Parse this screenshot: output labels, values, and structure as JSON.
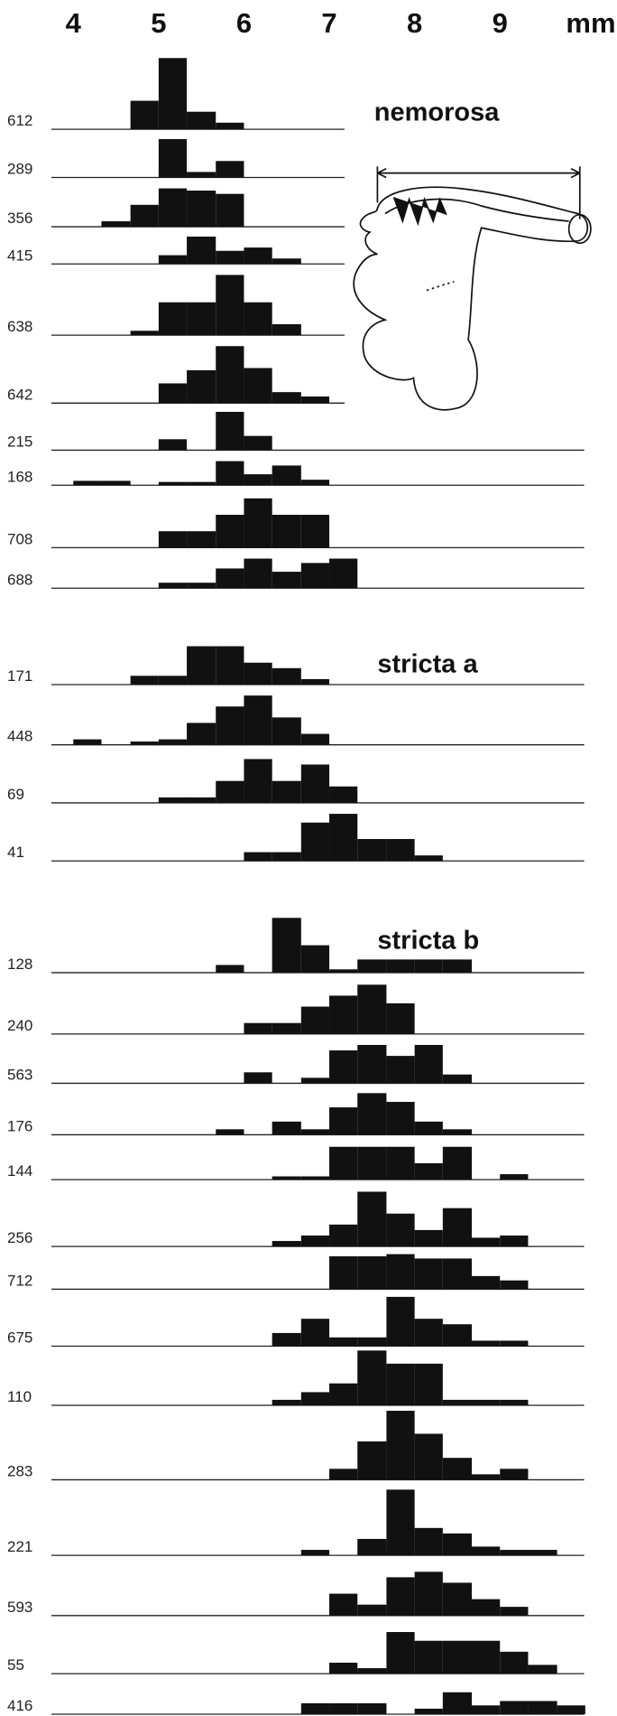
{
  "chart_data": {
    "type": "histogram",
    "xlabel": "mm",
    "xlim": [
      4,
      10
    ],
    "xticks": [
      4,
      5,
      6,
      7,
      8,
      9
    ],
    "color": "#111111",
    "bins": [
      4,
      4.33,
      4.67,
      5,
      5.33,
      5.67,
      6,
      6.33,
      6.67,
      7,
      7.33,
      7.67,
      8,
      8.33,
      8.67,
      9,
      9.33,
      9.67,
      10
    ],
    "panels": [
      {
        "title": "nemorosa",
        "series": [
          {
            "name": "612",
            "values": [
              0,
              0,
              26,
              65,
              16,
              6,
              0,
              0,
              0,
              0,
              0,
              0,
              0,
              0,
              0,
              0,
              0,
              0
            ]
          },
          {
            "name": "289",
            "values": [
              0,
              0,
              0,
              35,
              5,
              15,
              0,
              0,
              0,
              0,
              0,
              0,
              0,
              0,
              0,
              0,
              0,
              0
            ]
          },
          {
            "name": "356",
            "values": [
              0,
              5,
              20,
              35,
              33,
              30,
              0,
              0,
              0,
              0,
              0,
              0,
              0,
              0,
              0,
              0,
              0,
              0
            ]
          },
          {
            "name": "415",
            "values": [
              0,
              0,
              0,
              8,
              25,
              12,
              15,
              5,
              0,
              0,
              0,
              0,
              0,
              0,
              0,
              0,
              0,
              0
            ]
          },
          {
            "name": "638",
            "values": [
              0,
              0,
              4,
              30,
              30,
              55,
              30,
              10,
              0,
              0,
              0,
              0,
              0,
              0,
              0,
              0,
              0,
              0
            ]
          },
          {
            "name": "642",
            "values": [
              0,
              0,
              0,
              18,
              30,
              52,
              32,
              10,
              6,
              0,
              0,
              0,
              0,
              0,
              0,
              0,
              0,
              0
            ]
          },
          {
            "name": "215",
            "values": [
              0,
              0,
              0,
              10,
              0,
              35,
              13,
              0,
              0,
              0,
              0,
              0,
              0,
              0,
              0,
              0,
              0,
              0
            ]
          },
          {
            "name": "168",
            "values": [
              4,
              4,
              0,
              3,
              3,
              22,
              10,
              18,
              5,
              0,
              0,
              0,
              0,
              0,
              0,
              0,
              0,
              0
            ]
          },
          {
            "name": "708",
            "values": [
              0,
              0,
              0,
              15,
              15,
              30,
              45,
              30,
              30,
              0,
              0,
              0,
              0,
              0,
              0,
              0,
              0,
              0
            ]
          },
          {
            "name": "688",
            "values": [
              0,
              0,
              0,
              5,
              5,
              18,
              27,
              15,
              23,
              27,
              0,
              0,
              0,
              0,
              0,
              0,
              0,
              0
            ]
          }
        ]
      },
      {
        "title": "stricta a",
        "series": [
          {
            "name": "171",
            "values": [
              0,
              0,
              8,
              8,
              35,
              35,
              20,
              15,
              5,
              0,
              0,
              0,
              0,
              0,
              0,
              0,
              0,
              0
            ]
          },
          {
            "name": "448",
            "values": [
              5,
              0,
              3,
              5,
              20,
              35,
              45,
              25,
              10,
              0,
              0,
              0,
              0,
              0,
              0,
              0,
              0,
              0
            ]
          },
          {
            "name": "69",
            "values": [
              0,
              0,
              0,
              5,
              5,
              20,
              40,
              20,
              35,
              15,
              0,
              0,
              0,
              0,
              0,
              0,
              0,
              0
            ]
          },
          {
            "name": "41",
            "values": [
              0,
              0,
              0,
              0,
              0,
              0,
              8,
              8,
              35,
              43,
              20,
              20,
              5,
              0,
              0,
              0,
              0,
              0
            ]
          }
        ]
      },
      {
        "title": "stricta b",
        "series": [
          {
            "name": "128",
            "values": [
              0,
              0,
              0,
              0,
              0,
              7,
              0,
              50,
              25,
              3,
              12,
              12,
              12,
              12,
              0,
              0,
              0,
              0
            ]
          },
          {
            "name": "240",
            "values": [
              0,
              0,
              0,
              0,
              0,
              0,
              10,
              10,
              25,
              35,
              45,
              28,
              0,
              0,
              0,
              0,
              0,
              0
            ]
          },
          {
            "name": "563",
            "values": [
              0,
              0,
              0,
              0,
              0,
              0,
              10,
              0,
              5,
              30,
              35,
              25,
              35,
              8,
              0,
              0,
              0,
              0
            ]
          },
          {
            "name": "176",
            "values": [
              0,
              0,
              0,
              0,
              0,
              5,
              0,
              12,
              5,
              25,
              38,
              30,
              12,
              5,
              0,
              0,
              0,
              0
            ]
          },
          {
            "name": "144",
            "values": [
              0,
              0,
              0,
              0,
              0,
              0,
              0,
              3,
              3,
              30,
              30,
              30,
              15,
              30,
              0,
              5,
              0,
              0
            ]
          },
          {
            "name": "256",
            "values": [
              0,
              0,
              0,
              0,
              0,
              0,
              0,
              5,
              10,
              20,
              50,
              30,
              15,
              35,
              8,
              10,
              0,
              0
            ]
          },
          {
            "name": "712",
            "values": [
              0,
              0,
              0,
              0,
              0,
              0,
              0,
              0,
              0,
              30,
              30,
              32,
              28,
              28,
              12,
              8,
              0,
              0
            ]
          },
          {
            "name": "675",
            "values": [
              0,
              0,
              0,
              0,
              0,
              0,
              0,
              12,
              25,
              8,
              8,
              45,
              25,
              20,
              5,
              5,
              0,
              0
            ]
          },
          {
            "name": "110",
            "values": [
              0,
              0,
              0,
              0,
              0,
              0,
              0,
              5,
              12,
              20,
              50,
              38,
              38,
              5,
              5,
              5,
              0,
              0
            ]
          },
          {
            "name": "283",
            "values": [
              0,
              0,
              0,
              0,
              0,
              0,
              0,
              0,
              0,
              10,
              35,
              63,
              42,
              20,
              5,
              10,
              0,
              0
            ]
          },
          {
            "name": "221",
            "values": [
              0,
              0,
              0,
              0,
              0,
              0,
              0,
              0,
              5,
              0,
              15,
              60,
              25,
              20,
              8,
              5,
              5,
              0
            ]
          },
          {
            "name": "593",
            "values": [
              0,
              0,
              0,
              0,
              0,
              0,
              0,
              0,
              0,
              20,
              10,
              35,
              40,
              30,
              15,
              8,
              0,
              0
            ]
          },
          {
            "name": "55",
            "values": [
              0,
              0,
              0,
              0,
              0,
              0,
              0,
              0,
              0,
              10,
              5,
              38,
              30,
              30,
              30,
              20,
              8,
              0
            ]
          },
          {
            "name": "416",
            "values": [
              0,
              0,
              0,
              0,
              0,
              0,
              0,
              0,
              10,
              10,
              10,
              0,
              5,
              20,
              8,
              12,
              12,
              8
            ]
          }
        ]
      }
    ]
  }
}
